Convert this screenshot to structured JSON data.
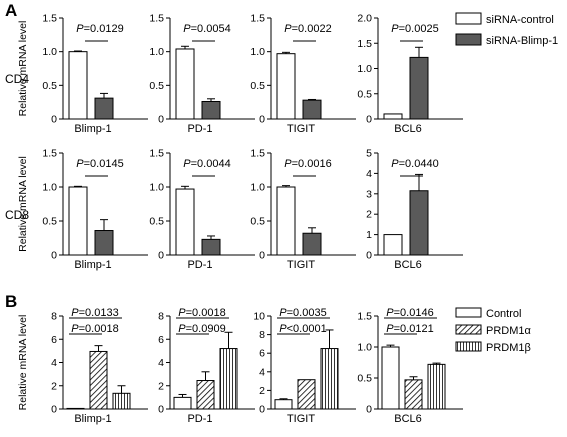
{
  "panels": {
    "A": {
      "label": "A",
      "legend": [
        "siRNA-control",
        "siRNA-Blimp-1"
      ],
      "colors": [
        "#ffffff",
        "#5a5a5a"
      ]
    },
    "B": {
      "label": "B",
      "legend": [
        "Control",
        "PRDM1α",
        "PRDM1β"
      ],
      "colors": [
        "#ffffff",
        "hatch",
        "vlines"
      ]
    }
  },
  "row_labels": [
    "CD4",
    "CD8"
  ],
  "chart_data": [
    {
      "type": "bar",
      "panel": "A",
      "row": "CD4",
      "category": "Blimp-1",
      "ylabel": "Relative mRNA level",
      "ylim": [
        0,
        1.5
      ],
      "yticks": [
        "0",
        "0.5",
        "1.0",
        "1.5"
      ],
      "series": [
        {
          "name": "siRNA-control",
          "values": [
            1.0
          ],
          "errors": [
            0.01
          ]
        },
        {
          "name": "siRNA-Blimp-1",
          "values": [
            0.31
          ],
          "errors": [
            0.07
          ]
        }
      ],
      "annotations": [
        "P=0.0129"
      ]
    },
    {
      "type": "bar",
      "panel": "A",
      "row": "CD4",
      "category": "PD-1",
      "ylabel": "",
      "ylim": [
        0,
        1.5
      ],
      "yticks": [
        "0",
        "0.5",
        "1.0",
        "1.5"
      ],
      "series": [
        {
          "name": "siRNA-control",
          "values": [
            1.04
          ],
          "errors": [
            0.04
          ]
        },
        {
          "name": "siRNA-Blimp-1",
          "values": [
            0.26
          ],
          "errors": [
            0.04
          ]
        }
      ],
      "annotations": [
        "P=0.0054"
      ]
    },
    {
      "type": "bar",
      "panel": "A",
      "row": "CD4",
      "category": "TIGIT",
      "ylabel": "",
      "ylim": [
        0,
        1.5
      ],
      "yticks": [
        "0",
        "0.5",
        "1.0",
        "1.5"
      ],
      "series": [
        {
          "name": "siRNA-control",
          "values": [
            0.97
          ],
          "errors": [
            0.02
          ]
        },
        {
          "name": "siRNA-Blimp-1",
          "values": [
            0.28
          ],
          "errors": [
            0.01
          ]
        }
      ],
      "annotations": [
        "P=0.0022"
      ]
    },
    {
      "type": "bar",
      "panel": "A",
      "row": "CD4",
      "category": "BCL6",
      "ylabel": "",
      "ylim": [
        0,
        2.0
      ],
      "yticks": [
        "0",
        "0.5",
        "1.0",
        "1.5",
        "2.0"
      ],
      "series": [
        {
          "name": "siRNA-control",
          "values": [
            0.1
          ],
          "errors": [
            0.0
          ]
        },
        {
          "name": "siRNA-Blimp-1",
          "values": [
            1.22
          ],
          "errors": [
            0.2
          ]
        }
      ],
      "annotations": [
        "P=0.0025"
      ]
    },
    {
      "type": "bar",
      "panel": "A",
      "row": "CD8",
      "category": "Blimp-1",
      "ylabel": "Relative mRNA level",
      "ylim": [
        0,
        1.5
      ],
      "yticks": [
        "0",
        "0.5",
        "1.0",
        "1.5"
      ],
      "series": [
        {
          "name": "siRNA-control",
          "values": [
            1.0
          ],
          "errors": [
            0.01
          ]
        },
        {
          "name": "siRNA-Blimp-1",
          "values": [
            0.36
          ],
          "errors": [
            0.16
          ]
        }
      ],
      "annotations": [
        "P=0.0145"
      ]
    },
    {
      "type": "bar",
      "panel": "A",
      "row": "CD8",
      "category": "PD-1",
      "ylabel": "",
      "ylim": [
        0,
        1.5
      ],
      "yticks": [
        "0",
        "0.5",
        "1.0",
        "1.5"
      ],
      "series": [
        {
          "name": "siRNA-control",
          "values": [
            0.97
          ],
          "errors": [
            0.04
          ]
        },
        {
          "name": "siRNA-Blimp-1",
          "values": [
            0.23
          ],
          "errors": [
            0.05
          ]
        }
      ],
      "annotations": [
        "P=0.0044"
      ]
    },
    {
      "type": "bar",
      "panel": "A",
      "row": "CD8",
      "category": "TIGIT",
      "ylabel": "",
      "ylim": [
        0,
        1.5
      ],
      "yticks": [
        "0",
        "0.5",
        "1.0",
        "1.5"
      ],
      "series": [
        {
          "name": "siRNA-control",
          "values": [
            1.0
          ],
          "errors": [
            0.02
          ]
        },
        {
          "name": "siRNA-Blimp-1",
          "values": [
            0.32
          ],
          "errors": [
            0.08
          ]
        }
      ],
      "annotations": [
        "P=0.0016"
      ]
    },
    {
      "type": "bar",
      "panel": "A",
      "row": "CD8",
      "category": "BCL6",
      "ylabel": "",
      "ylim": [
        0,
        5
      ],
      "yticks": [
        "0",
        "1",
        "2",
        "3",
        "4",
        "5"
      ],
      "series": [
        {
          "name": "siRNA-control",
          "values": [
            1.0
          ],
          "errors": [
            0.0
          ]
        },
        {
          "name": "siRNA-Blimp-1",
          "values": [
            3.15
          ],
          "errors": [
            0.8
          ]
        }
      ],
      "annotations": [
        "P=0.0440"
      ]
    },
    {
      "type": "bar",
      "panel": "B",
      "category": "Blimp-1",
      "ylabel": "Relative mRNA level",
      "ylim": [
        0,
        8
      ],
      "yticks": [
        "0",
        "2",
        "4",
        "6",
        "8"
      ],
      "series": [
        {
          "name": "Control",
          "values": [
            0.05
          ],
          "errors": [
            0.0
          ]
        },
        {
          "name": "PRDM1α",
          "values": [
            4.95
          ],
          "errors": [
            0.5
          ]
        },
        {
          "name": "PRDM1β",
          "values": [
            1.35
          ],
          "errors": [
            0.65
          ]
        }
      ],
      "annotations": [
        "P=0.0133",
        "P=0.0018"
      ]
    },
    {
      "type": "bar",
      "panel": "B",
      "category": "PD-1",
      "ylabel": "",
      "ylim": [
        0,
        8
      ],
      "yticks": [
        "0",
        "2",
        "4",
        "6",
        "8"
      ],
      "series": [
        {
          "name": "Control",
          "values": [
            1.0
          ],
          "errors": [
            0.25
          ]
        },
        {
          "name": "PRDM1α",
          "values": [
            2.45
          ],
          "errors": [
            0.75
          ]
        },
        {
          "name": "PRDM1β",
          "values": [
            5.2
          ],
          "errors": [
            1.4
          ]
        }
      ],
      "annotations": [
        "P=0.0018",
        "P=0.0909"
      ]
    },
    {
      "type": "bar",
      "panel": "B",
      "category": "TIGIT",
      "ylabel": "",
      "ylim": [
        0,
        10
      ],
      "yticks": [
        "0",
        "2",
        "4",
        "6",
        "8",
        "10"
      ],
      "series": [
        {
          "name": "Control",
          "values": [
            1.0
          ],
          "errors": [
            0.1
          ]
        },
        {
          "name": "PRDM1α",
          "values": [
            3.15
          ],
          "errors": [
            0.0
          ]
        },
        {
          "name": "PRDM1β",
          "values": [
            6.5
          ],
          "errors": [
            2.0
          ]
        }
      ],
      "annotations": [
        "P=0.0035",
        "P<0.0001"
      ]
    },
    {
      "type": "bar",
      "panel": "B",
      "category": "BCL6",
      "ylabel": "",
      "ylim": [
        0,
        1.5
      ],
      "yticks": [
        "0",
        "0.5",
        "1.0",
        "1.5"
      ],
      "series": [
        {
          "name": "Control",
          "values": [
            1.0
          ],
          "errors": [
            0.03
          ]
        },
        {
          "name": "PRDM1α",
          "values": [
            0.47
          ],
          "errors": [
            0.05
          ]
        },
        {
          "name": "PRDM1β",
          "values": [
            0.72
          ],
          "errors": [
            0.02
          ]
        }
      ],
      "annotations": [
        "P=0.0146",
        "P=0.0121"
      ]
    }
  ]
}
